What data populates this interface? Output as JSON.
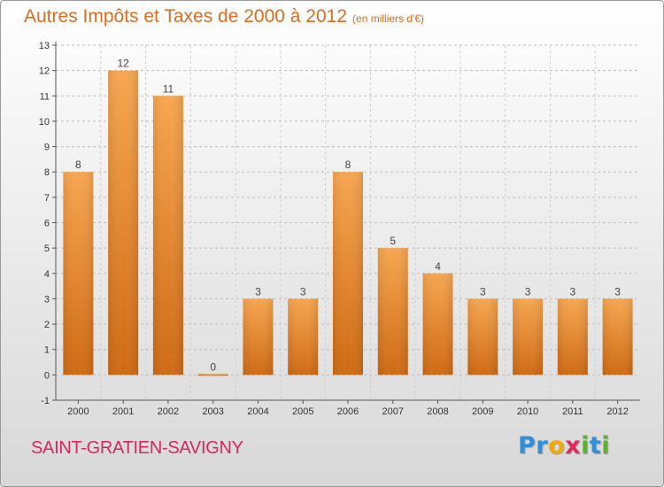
{
  "chart_data": {
    "type": "bar",
    "title": "Autres Impôts et Taxes de 2000 à 2012",
    "subtitle": "(en milliers d'€)",
    "categories": [
      "2000",
      "2001",
      "2002",
      "2003",
      "2004",
      "2005",
      "2006",
      "2007",
      "2008",
      "2009",
      "2010",
      "2011",
      "2012"
    ],
    "values": [
      8,
      12,
      11,
      0,
      3,
      3,
      8,
      5,
      4,
      3,
      3,
      3,
      3
    ],
    "ylim": [
      -1,
      13
    ],
    "yticks": [
      "-1",
      "0",
      "1",
      "2",
      "3",
      "4",
      "5",
      "6",
      "7",
      "8",
      "9",
      "10",
      "11",
      "12",
      "13"
    ],
    "grid": true,
    "bar_color": "#f59a43"
  },
  "footer": {
    "place_name": "SAINT-GRATIEN-SAVIGNY",
    "logo": [
      {
        "char": "P",
        "color": "#2f8fd8"
      },
      {
        "char": "r",
        "color": "#2f8fd8"
      },
      {
        "char": "o",
        "color": "#f2a900"
      },
      {
        "char": "x",
        "color": "#e02a5b"
      },
      {
        "char": "i",
        "color": "#5fb032"
      },
      {
        "char": "t",
        "color": "#2f8fd8"
      },
      {
        "char": "i",
        "color": "#5fb032"
      }
    ]
  }
}
